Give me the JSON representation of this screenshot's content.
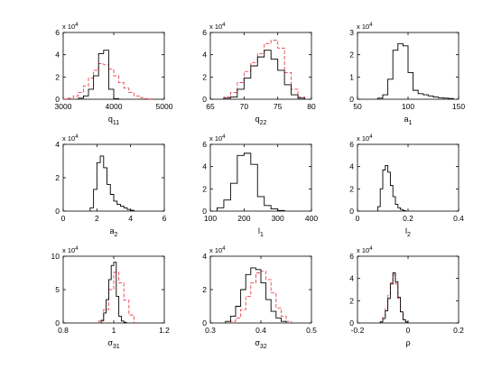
{
  "figure": {
    "grid": "3x3",
    "background": "#ffffff",
    "axis_color": "#000000"
  },
  "series_styles": [
    {
      "color": "#000000",
      "dash": ""
    },
    {
      "color": "#e8434f",
      "dash": "4,2"
    }
  ],
  "chart_data": [
    {
      "type": "histogram",
      "xlabel": "q",
      "xlabel_sub": "11",
      "xlim": [
        3000,
        5000
      ],
      "xticks": [
        3000,
        4000,
        5000
      ],
      "xtick_labels": [
        "3000",
        "4000",
        "5000"
      ],
      "ylim": [
        0,
        6
      ],
      "yticks": [
        0,
        2,
        4,
        6
      ],
      "ytick_labels": [
        "0",
        "2",
        "4",
        "6"
      ],
      "y_multiplier": "x 10",
      "y_exponent": "4",
      "series": [
        {
          "edges": [
            3300,
            3400,
            3500,
            3600,
            3700,
            3800,
            3900,
            4000,
            4100
          ],
          "values": [
            0.1,
            0.3,
            0.9,
            2.1,
            4.1,
            4.4,
            0.9,
            0.05
          ]
        },
        {
          "edges": [
            3000,
            3100,
            3200,
            3300,
            3400,
            3500,
            3600,
            3700,
            3800,
            3900,
            4000,
            4100,
            4200,
            4300,
            4400,
            4500,
            4600,
            4700,
            4800
          ],
          "values": [
            0.02,
            0.1,
            0.3,
            0.6,
            1.2,
            1.9,
            2.6,
            3.2,
            3.1,
            2.7,
            2.1,
            1.5,
            1.0,
            0.6,
            0.3,
            0.15,
            0.05,
            0.02
          ]
        }
      ]
    },
    {
      "type": "histogram",
      "xlabel": "q",
      "xlabel_sub": "22",
      "xlim": [
        65,
        80
      ],
      "xticks": [
        65,
        70,
        75,
        80
      ],
      "xtick_labels": [
        "65",
        "70",
        "75",
        "80"
      ],
      "ylim": [
        0,
        6
      ],
      "yticks": [
        0,
        2,
        4,
        6
      ],
      "ytick_labels": [
        "0",
        "2",
        "4",
        "6"
      ],
      "y_multiplier": "x 10",
      "y_exponent": "4",
      "series": [
        {
          "edges": [
            67,
            68,
            69,
            70,
            71,
            72,
            73,
            74,
            75,
            76,
            77,
            78,
            79
          ],
          "values": [
            0.1,
            0.2,
            0.9,
            1.9,
            3.0,
            3.8,
            4.4,
            3.6,
            2.6,
            1.3,
            0.4,
            0.1
          ]
        },
        {
          "edges": [
            67,
            68,
            69,
            70,
            71,
            72,
            73,
            74,
            75,
            76,
            77,
            78,
            79
          ],
          "values": [
            0.2,
            0.6,
            1.5,
            2.5,
            3.3,
            4.1,
            5.0,
            5.3,
            4.6,
            2.4,
            0.9,
            0.2
          ]
        }
      ]
    },
    {
      "type": "histogram",
      "xlabel": "a",
      "xlabel_sub": "1",
      "xlim": [
        50,
        150
      ],
      "xticks": [
        50,
        100,
        150
      ],
      "xtick_labels": [
        "50",
        "100",
        "150"
      ],
      "ylim": [
        0,
        3
      ],
      "yticks": [
        0,
        1,
        2,
        3
      ],
      "ytick_labels": [
        "0",
        "1",
        "2",
        "3"
      ],
      "y_multiplier": "x 10",
      "y_exponent": "4",
      "series": [
        {
          "edges": [
            70,
            75,
            80,
            85,
            90,
            95,
            100,
            105,
            110,
            115,
            120,
            125,
            130,
            135,
            140,
            145
          ],
          "values": [
            0.05,
            0.2,
            0.9,
            2.2,
            2.5,
            2.4,
            1.2,
            0.4,
            0.25,
            0.2,
            0.15,
            0.1,
            0.07,
            0.05,
            0.03
          ]
        }
      ]
    },
    {
      "type": "histogram",
      "xlabel": "a",
      "xlabel_sub": "2",
      "xlim": [
        0,
        6
      ],
      "xticks": [
        0,
        2,
        4,
        6
      ],
      "xtick_labels": [
        "0",
        "2",
        "4",
        "6"
      ],
      "ylim": [
        0,
        4
      ],
      "yticks": [
        0,
        2,
        4
      ],
      "ytick_labels": [
        "0",
        "2",
        "4"
      ],
      "y_multiplier": "x 10",
      "y_exponent": "4",
      "series": [
        {
          "edges": [
            1.6,
            1.8,
            2.0,
            2.2,
            2.4,
            2.6,
            2.8,
            3.0,
            3.2,
            3.4,
            3.6,
            3.8,
            4.0,
            4.2
          ],
          "values": [
            0.2,
            1.3,
            2.9,
            3.3,
            2.6,
            1.6,
            1.0,
            0.6,
            0.4,
            0.3,
            0.2,
            0.1,
            0.05
          ]
        }
      ]
    },
    {
      "type": "histogram",
      "xlabel": "l",
      "xlabel_sub": "1",
      "xlim": [
        100,
        400
      ],
      "xticks": [
        100,
        200,
        300,
        400
      ],
      "xtick_labels": [
        "100",
        "200",
        "300",
        "400"
      ],
      "ylim": [
        0,
        6
      ],
      "yticks": [
        0,
        2,
        4,
        6
      ],
      "ytick_labels": [
        "0",
        "2",
        "4",
        "6"
      ],
      "y_multiplier": "x 10",
      "y_exponent": "4",
      "series": [
        {
          "edges": [
            120,
            140,
            160,
            180,
            200,
            220,
            240,
            260,
            280,
            300,
            320
          ],
          "values": [
            0.3,
            1.0,
            2.5,
            5.0,
            5.2,
            4.2,
            1.3,
            0.5,
            0.2,
            0.05
          ]
        }
      ]
    },
    {
      "type": "histogram",
      "xlabel": "l",
      "xlabel_sub": "2",
      "xlim": [
        0,
        0.4
      ],
      "xticks": [
        0,
        0.2,
        0.4
      ],
      "xtick_labels": [
        "0",
        "0.2",
        "0.4"
      ],
      "ylim": [
        0,
        6
      ],
      "yticks": [
        0,
        2,
        4,
        6
      ],
      "ytick_labels": [
        "0",
        "2",
        "4",
        "6"
      ],
      "y_multiplier": "x 10",
      "y_exponent": "4",
      "series": [
        {
          "edges": [
            0.08,
            0.09,
            0.1,
            0.11,
            0.12,
            0.13,
            0.14,
            0.15,
            0.16,
            0.17,
            0.18,
            0.19
          ],
          "values": [
            0.4,
            2.0,
            3.7,
            4.1,
            3.5,
            2.3,
            1.3,
            0.6,
            0.3,
            0.15,
            0.05
          ]
        }
      ]
    },
    {
      "type": "histogram",
      "xlabel": "σ",
      "xlabel_sub": "31",
      "xlim": [
        0.8,
        1.2
      ],
      "xticks": [
        0.8,
        1.0,
        1.2
      ],
      "xtick_labels": [
        "0.8",
        "1",
        "1.2"
      ],
      "ylim": [
        0,
        10
      ],
      "yticks": [
        0,
        5,
        10
      ],
      "ytick_labels": [
        "0",
        "5",
        "10"
      ],
      "y_multiplier": "x 10",
      "y_exponent": "4",
      "series": [
        {
          "edges": [
            0.95,
            0.96,
            0.97,
            0.98,
            0.99,
            1.0,
            1.01,
            1.02,
            1.03,
            1.04,
            1.05
          ],
          "values": [
            0.4,
            1.5,
            3.5,
            6.5,
            8.6,
            9.1,
            4.0,
            1.0,
            0.3,
            0.1
          ]
        },
        {
          "edges": [
            0.94,
            0.96,
            0.98,
            1.0,
            1.02,
            1.04,
            1.06,
            1.08
          ],
          "values": [
            0.3,
            2.0,
            5.0,
            7.6,
            6.0,
            3.4,
            1.2
          ]
        }
      ]
    },
    {
      "type": "histogram",
      "xlabel": "σ",
      "xlabel_sub": "32",
      "xlim": [
        0.3,
        0.5
      ],
      "xticks": [
        0.3,
        0.4,
        0.5
      ],
      "xtick_labels": [
        "0.3",
        "0.4",
        "0.5"
      ],
      "ylim": [
        0,
        4
      ],
      "yticks": [
        0,
        2,
        4
      ],
      "ytick_labels": [
        "0",
        "2",
        "4"
      ],
      "y_multiplier": "x 10",
      "y_exponent": "4",
      "series": [
        {
          "edges": [
            0.33,
            0.34,
            0.35,
            0.36,
            0.37,
            0.38,
            0.39,
            0.4,
            0.41,
            0.42,
            0.43,
            0.44,
            0.45
          ],
          "values": [
            0.1,
            0.4,
            1.0,
            2.0,
            2.9,
            3.3,
            3.2,
            2.4,
            1.4,
            0.7,
            0.3,
            0.1
          ]
        },
        {
          "edges": [
            0.34,
            0.35,
            0.36,
            0.37,
            0.38,
            0.39,
            0.4,
            0.41,
            0.42,
            0.43,
            0.44,
            0.45,
            0.46
          ],
          "values": [
            0.1,
            0.3,
            0.8,
            1.6,
            2.4,
            3.0,
            3.1,
            2.6,
            1.8,
            0.9,
            0.4,
            0.1
          ]
        }
      ]
    },
    {
      "type": "histogram",
      "xlabel": "ρ",
      "xlabel_sub": "",
      "xlim": [
        -0.2,
        0.2
      ],
      "xticks": [
        -0.2,
        0,
        0.2
      ],
      "xtick_labels": [
        "-0.2",
        "0",
        "0.2"
      ],
      "ylim": [
        0,
        6
      ],
      "yticks": [
        0,
        2,
        4,
        6
      ],
      "ytick_labels": [
        "0",
        "2",
        "4",
        "6"
      ],
      "y_multiplier": "x 10",
      "y_exponent": "4",
      "series": [
        {
          "edges": [
            -0.11,
            -0.1,
            -0.09,
            -0.08,
            -0.07,
            -0.06,
            -0.05,
            -0.04,
            -0.03,
            -0.02,
            -0.01,
            0.0
          ],
          "values": [
            0.1,
            0.4,
            1.1,
            2.2,
            3.5,
            4.5,
            3.7,
            2.3,
            1.0,
            0.3,
            0.1
          ]
        },
        {
          "edges": [
            -0.11,
            -0.1,
            -0.09,
            -0.08,
            -0.07,
            -0.06,
            -0.05,
            -0.04,
            -0.03,
            -0.02,
            -0.01,
            0.0
          ],
          "values": [
            0.1,
            0.5,
            1.3,
            2.5,
            3.6,
            4.3,
            3.5,
            2.2,
            1.0,
            0.3,
            0.1
          ]
        }
      ]
    }
  ]
}
